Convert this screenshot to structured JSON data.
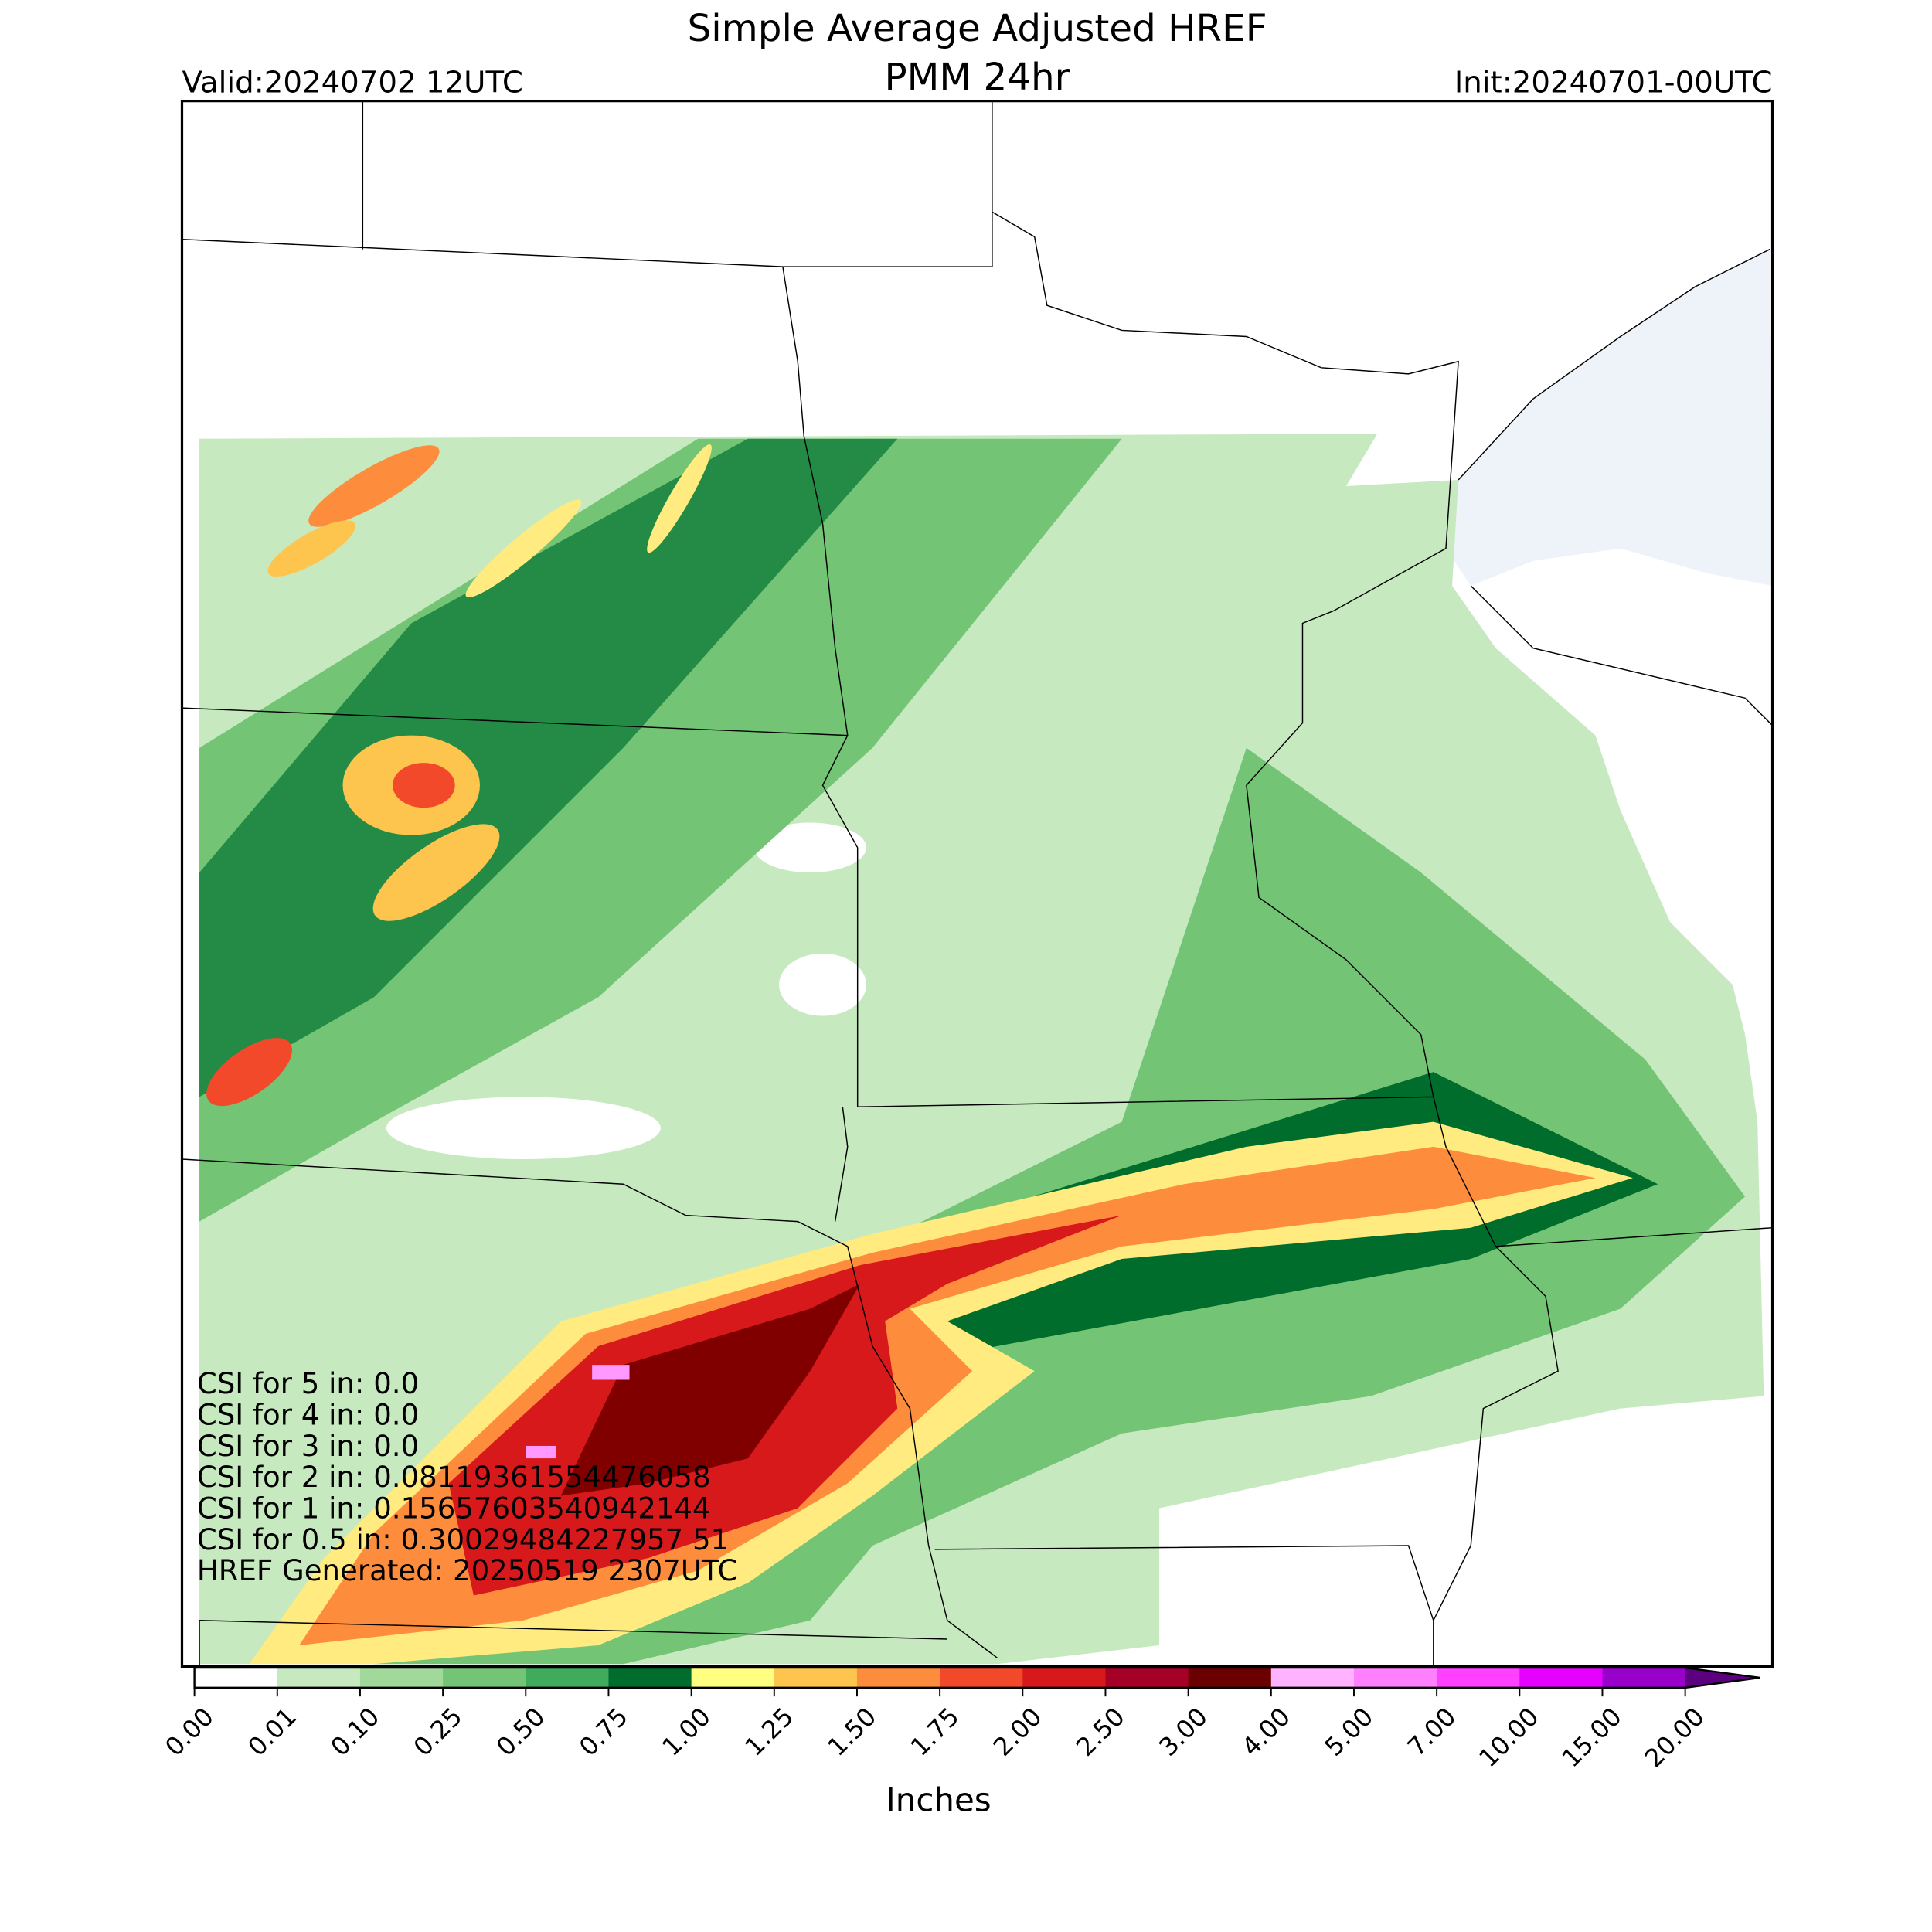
{
  "header": {
    "title": "Simple Average Adjusted HREF",
    "subtitle": "PMM 24hr",
    "valid": "Valid:20240702 12UTC",
    "init": "Init:20240701-00UTC"
  },
  "annotations": [
    "CSI for 5 in: 0.0",
    "CSI for 4 in: 0.0",
    "CSI for 3 in: 0.0",
    "CSI for 2 in: 0.08119361554476058",
    "CSI for 1 in: 0.15657603540942144",
    "CSI for 0.5 in: 0.30029484227957 51",
    "HREF Generated: 20250519 2307UTC"
  ],
  "colorbar": {
    "label": "Inches",
    "ticks": [
      {
        "value": 0,
        "label": "0.00"
      },
      {
        "value": 0.01,
        "label": "0.01"
      },
      {
        "value": 0.1,
        "label": "0.10"
      },
      {
        "value": 0.25,
        "label": "0.25"
      },
      {
        "value": 0.5,
        "label": "0.50"
      },
      {
        "value": 0.75,
        "label": "0.75"
      },
      {
        "value": 1,
        "label": "1.00"
      },
      {
        "value": 1.25,
        "label": "1.25"
      },
      {
        "value": 1.5,
        "label": "1.50"
      },
      {
        "value": 1.75,
        "label": "1.75"
      },
      {
        "value": 2,
        "label": "2.00"
      },
      {
        "value": 2.5,
        "label": "2.50"
      },
      {
        "value": 3,
        "label": "3.00"
      },
      {
        "value": 4,
        "label": "4.00"
      },
      {
        "value": 5,
        "label": "5.00"
      },
      {
        "value": 7,
        "label": "7.00"
      },
      {
        "value": 10,
        "label": "10.00"
      },
      {
        "value": 15,
        "label": "15.00"
      },
      {
        "value": 20,
        "label": "20.00"
      }
    ],
    "colors": [
      "#ffffff",
      "#c7e9c0",
      "#a1d99b",
      "#74c476",
      "#41ab5d",
      "#006d2c",
      "#ffff80",
      "#fdc44e",
      "#fd8d3c",
      "#f1492a",
      "#d7191c",
      "#a50026",
      "#6b0000",
      "#ffb3ff",
      "#ff80ff",
      "#ff40ff",
      "#e600ff",
      "#9900cc"
    ],
    "extend_color": "#5c0080"
  }
}
